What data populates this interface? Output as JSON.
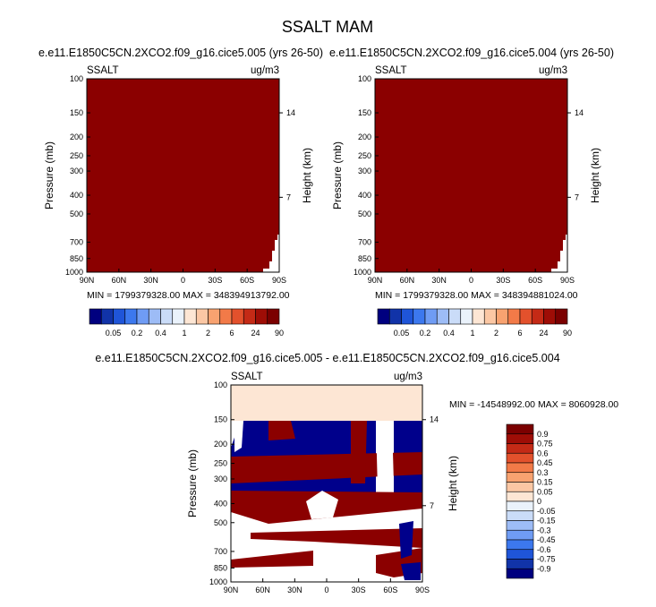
{
  "page_title": "SSALT MAM",
  "chart_data": [
    {
      "type": "heatmap",
      "title": "e.e11.E1850C5CN.2XCO2.f09_g16.cice5.005 (yrs 26-50)",
      "left_label": "SSALT",
      "right_label": "ug/m3",
      "ylabel": "Pressure (mb)",
      "ylabel_right": "Height (km)",
      "x_ticks": [
        "90N",
        "60N",
        "30N",
        "0",
        "30S",
        "60S",
        "90S"
      ],
      "y_ticks": [
        "100",
        "150",
        "200",
        "250",
        "300",
        "400",
        "500",
        "700",
        "850",
        "1000"
      ],
      "y_right_ticks": [
        "14",
        "7"
      ],
      "ylim": [
        1000,
        100
      ],
      "stats": "MIN = 1799379328.00   MAX = 348394913792.00",
      "colorbar_labels": [
        "0.05",
        "0.2",
        "0.4",
        "1",
        "2",
        "6",
        "24",
        "90"
      ]
    },
    {
      "type": "heatmap",
      "title": "e.e11.E1850C5CN.2XCO2.f09_g16.cice5.004 (yrs 26-50)",
      "left_label": "SSALT",
      "right_label": "ug/m3",
      "ylabel": "Pressure (mb)",
      "ylabel_right": "Height (km)",
      "x_ticks": [
        "90N",
        "60N",
        "30N",
        "0",
        "30S",
        "60S",
        "90S"
      ],
      "y_ticks": [
        "100",
        "150",
        "200",
        "250",
        "300",
        "400",
        "500",
        "700",
        "850",
        "1000"
      ],
      "y_right_ticks": [
        "14",
        "7"
      ],
      "ylim": [
        1000,
        100
      ],
      "stats": "MIN = 1799379328.00   MAX = 348394881024.00",
      "colorbar_labels": [
        "0.05",
        "0.2",
        "0.4",
        "1",
        "2",
        "6",
        "24",
        "90"
      ]
    },
    {
      "type": "heatmap",
      "title": "e.e11.E1850C5CN.2XCO2.f09_g16.cice5.005 - e.e11.E1850C5CN.2XCO2.f09_g16.cice5.004",
      "left_label": "SSALT",
      "right_label": "ug/m3",
      "ylabel": "Pressure (mb)",
      "ylabel_right": "Height (km)",
      "x_ticks": [
        "90N",
        "60N",
        "30N",
        "0",
        "30S",
        "60S",
        "90S"
      ],
      "y_ticks": [
        "100",
        "150",
        "200",
        "250",
        "300",
        "400",
        "500",
        "700",
        "850",
        "1000"
      ],
      "y_right_ticks": [
        "14",
        "7"
      ],
      "ylim": [
        1000,
        100
      ],
      "stats": "MIN = -14548992.00   MAX = 8060928.00",
      "colorbar_labels": [
        "0.9",
        "0.75",
        "0.6",
        "0.45",
        "0.3",
        "0.15",
        "0.05",
        "0",
        "-0.05",
        "-0.15",
        "-0.3",
        "-0.45",
        "-0.6",
        "-0.75",
        "-0.9"
      ]
    }
  ],
  "colors": {
    "field_high": "#8b0000",
    "diff_positive": "#8b0000",
    "diff_negative": "#00008b",
    "diff_near_zero_top": "#fde6d4",
    "scale_a": [
      "#00007f",
      "#1133a8",
      "#1f55d8",
      "#3c78ee",
      "#6f9cf4",
      "#9dbcf6",
      "#cadcf8",
      "#eaf2fb",
      "#fde6d4",
      "#fbc7a4",
      "#f8a270",
      "#f27a48",
      "#e3512c",
      "#c42a16",
      "#9e0d06",
      "#7b0000"
    ],
    "scale_b": [
      "#7b0000",
      "#9e0d06",
      "#c42a16",
      "#e3512c",
      "#f27a48",
      "#f8a270",
      "#fbc7a4",
      "#fde6d4",
      "#eaf2fb",
      "#cadcf8",
      "#9dbcf6",
      "#6f9cf4",
      "#3c78ee",
      "#1f55d8",
      "#1133a8",
      "#00007f"
    ]
  }
}
